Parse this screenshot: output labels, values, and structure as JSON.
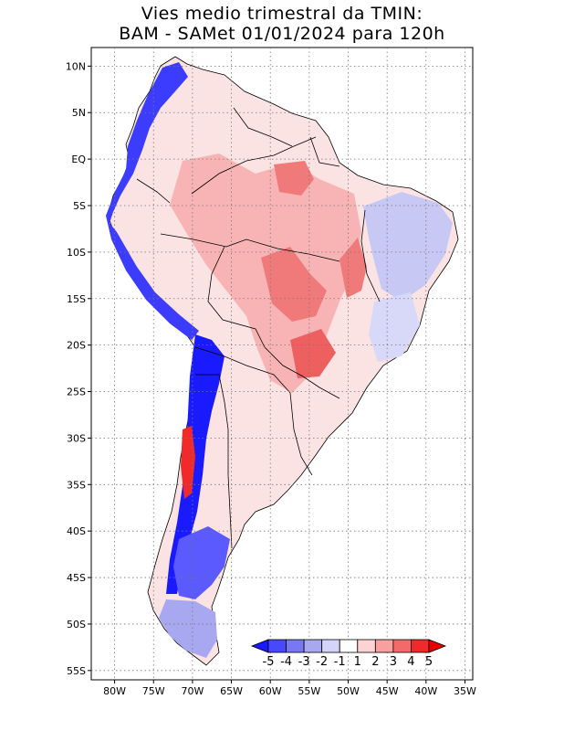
{
  "title": {
    "line1": "Vies medio trimestral da TMIN:",
    "line2": "BAM - SAMet 01/01/2024  para 120h"
  },
  "map": {
    "region": "South America",
    "lon_range": [
      -83,
      -34
    ],
    "lat_range": [
      -56,
      12
    ],
    "grid_lines": "dotted",
    "lat_ticks": [
      {
        "value": 10,
        "label": "10N"
      },
      {
        "value": 5,
        "label": "5N"
      },
      {
        "value": 0,
        "label": "EQ"
      },
      {
        "value": -5,
        "label": "5S"
      },
      {
        "value": -10,
        "label": "10S"
      },
      {
        "value": -15,
        "label": "15S"
      },
      {
        "value": -20,
        "label": "20S"
      },
      {
        "value": -25,
        "label": "25S"
      },
      {
        "value": -30,
        "label": "30S"
      },
      {
        "value": -35,
        "label": "35S"
      },
      {
        "value": -40,
        "label": "40S"
      },
      {
        "value": -45,
        "label": "45S"
      },
      {
        "value": -50,
        "label": "50S"
      },
      {
        "value": -55,
        "label": "55S"
      }
    ],
    "lon_ticks": [
      {
        "value": -80,
        "label": "80W"
      },
      {
        "value": -75,
        "label": "75W"
      },
      {
        "value": -70,
        "label": "70W"
      },
      {
        "value": -65,
        "label": "65W"
      },
      {
        "value": -60,
        "label": "60W"
      },
      {
        "value": -55,
        "label": "55W"
      },
      {
        "value": -50,
        "label": "50W"
      },
      {
        "value": -45,
        "label": "45W"
      },
      {
        "value": -40,
        "label": "40W"
      },
      {
        "value": -35,
        "label": "35W"
      }
    ]
  },
  "colorbar": {
    "levels": [
      "-5",
      "-4",
      "-3",
      "-2",
      "-1",
      "1",
      "2",
      "3",
      "4",
      "5"
    ],
    "colors": [
      "#1a1aff",
      "#4848ff",
      "#7878f0",
      "#a8a8f0",
      "#d4d4f8",
      "#ffffff",
      "#fcd2d2",
      "#f8a0a0",
      "#f46a6a",
      "#f02a2a",
      "#e60000"
    ]
  }
}
